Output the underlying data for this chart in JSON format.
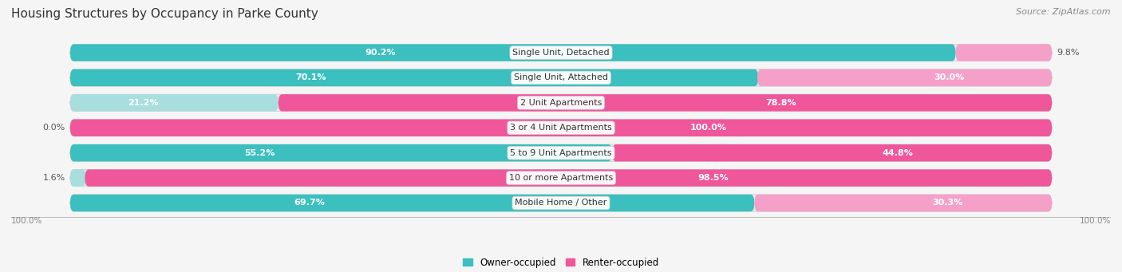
{
  "title": "Housing Structures by Occupancy in Parke County",
  "source": "Source: ZipAtlas.com",
  "categories": [
    "Single Unit, Detached",
    "Single Unit, Attached",
    "2 Unit Apartments",
    "3 or 4 Unit Apartments",
    "5 to 9 Unit Apartments",
    "10 or more Apartments",
    "Mobile Home / Other"
  ],
  "owner_pct": [
    90.2,
    70.1,
    21.2,
    0.0,
    55.2,
    1.6,
    69.7
  ],
  "renter_pct": [
    9.8,
    30.0,
    78.8,
    100.0,
    44.8,
    98.5,
    30.3
  ],
  "owner_color_strong": "#3BBFBF",
  "owner_color_light": "#A8DEDE",
  "renter_color_strong": "#F0569A",
  "renter_color_light": "#F5A0C8",
  "bg_color": "#F5F5F5",
  "row_bg_color": "#E8E8E8",
  "title_fontsize": 11,
  "source_fontsize": 8,
  "label_fontsize": 8,
  "category_fontsize": 8,
  "legend_fontsize": 8.5,
  "bar_height": 0.68,
  "figsize": [
    14.06,
    3.41
  ]
}
